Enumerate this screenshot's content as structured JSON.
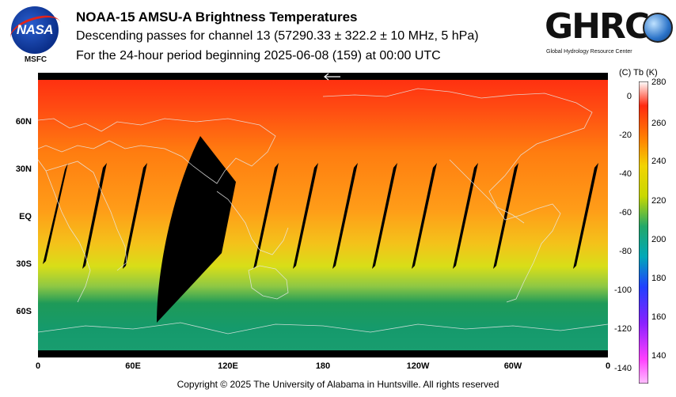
{
  "header": {
    "title": "NOAA-15 AMSU-A Brightness Temperatures",
    "subtitle": "Descending passes for channel 13 (57290.33 ± 322.2 ± 10 MHz, 5 hPa)",
    "period": "For the 24-hour period beginning 2025-06-08 (159) at 00:00 UTC"
  },
  "logos": {
    "left_text": "NASA",
    "left_caption": "MSFC",
    "right_text": "GHRC",
    "right_caption": "Global Hydrology Resource Center"
  },
  "map": {
    "lat_labels": [
      "60N",
      "30N",
      "EQ",
      "30S",
      "60S"
    ],
    "lon_labels": [
      "0",
      "60E",
      "120E",
      "180",
      "120W",
      "60W",
      "0"
    ],
    "arrow_icon": "left-arrow-icon"
  },
  "colorbar": {
    "header": "(C)  Tb  (K)",
    "celsius_ticks": [
      "0",
      "-20",
      "-40",
      "-60",
      "-80",
      "-100",
      "-120",
      "-140"
    ],
    "kelvin_ticks": [
      "280",
      "260",
      "240",
      "220",
      "200",
      "180",
      "160",
      "140"
    ],
    "range_k": [
      135,
      280
    ],
    "colors": [
      "#ffffff",
      "#ff3020",
      "#ff8c00",
      "#f5d800",
      "#c9d600",
      "#25b070",
      "#00a0b0",
      "#1e40ff",
      "#9020ff",
      "#ff50ff"
    ]
  },
  "footer": {
    "copyright": "Copyright © 2025 The University of Alabama in Huntsville.  All rights reserved"
  }
}
